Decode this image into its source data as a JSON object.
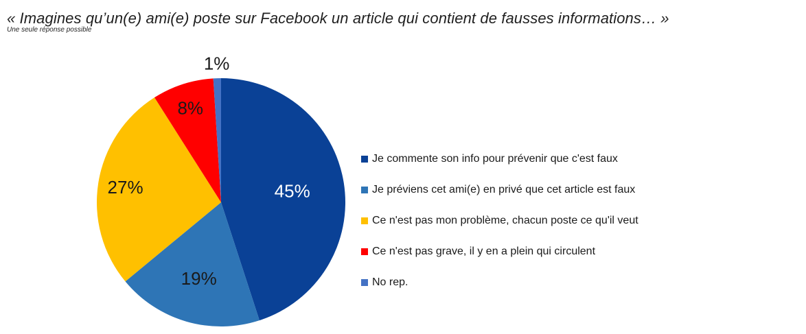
{
  "title": "« Imagines qu’un(e) ami(e) poste sur Facebook un article qui contient de fausses informations… »",
  "subtitle": "Une seule réponse possible",
  "chart_data": {
    "type": "pie",
    "unit": "%",
    "start_angle_deg": 0,
    "direction": "clockwise",
    "legend_position": "right",
    "slices": [
      {
        "label": "Je commente son info pour prévenir que c'est faux",
        "value": 45,
        "data_label": "45%",
        "color": "#0a4196",
        "label_color": "#ffffff"
      },
      {
        "label": "Je préviens cet ami(e) en privé que cet article est faux",
        "value": 19,
        "data_label": "19%",
        "color": "#2e75b6",
        "label_color": "#1a1a1a"
      },
      {
        "label": "Ce n'est pas mon problème, chacun poste ce qu'il veut",
        "value": 27,
        "data_label": "27%",
        "color": "#ffc000",
        "label_color": "#1a1a1a"
      },
      {
        "label": "Ce n'est pas grave, il y en a plein qui circulent",
        "value": 8,
        "data_label": "8%",
        "color": "#ff0000",
        "label_color": "#1a1a1a"
      },
      {
        "label": "No rep.",
        "value": 1,
        "data_label": "1%",
        "color": "#4472c4",
        "label_color": "#1a1a1a"
      }
    ]
  }
}
